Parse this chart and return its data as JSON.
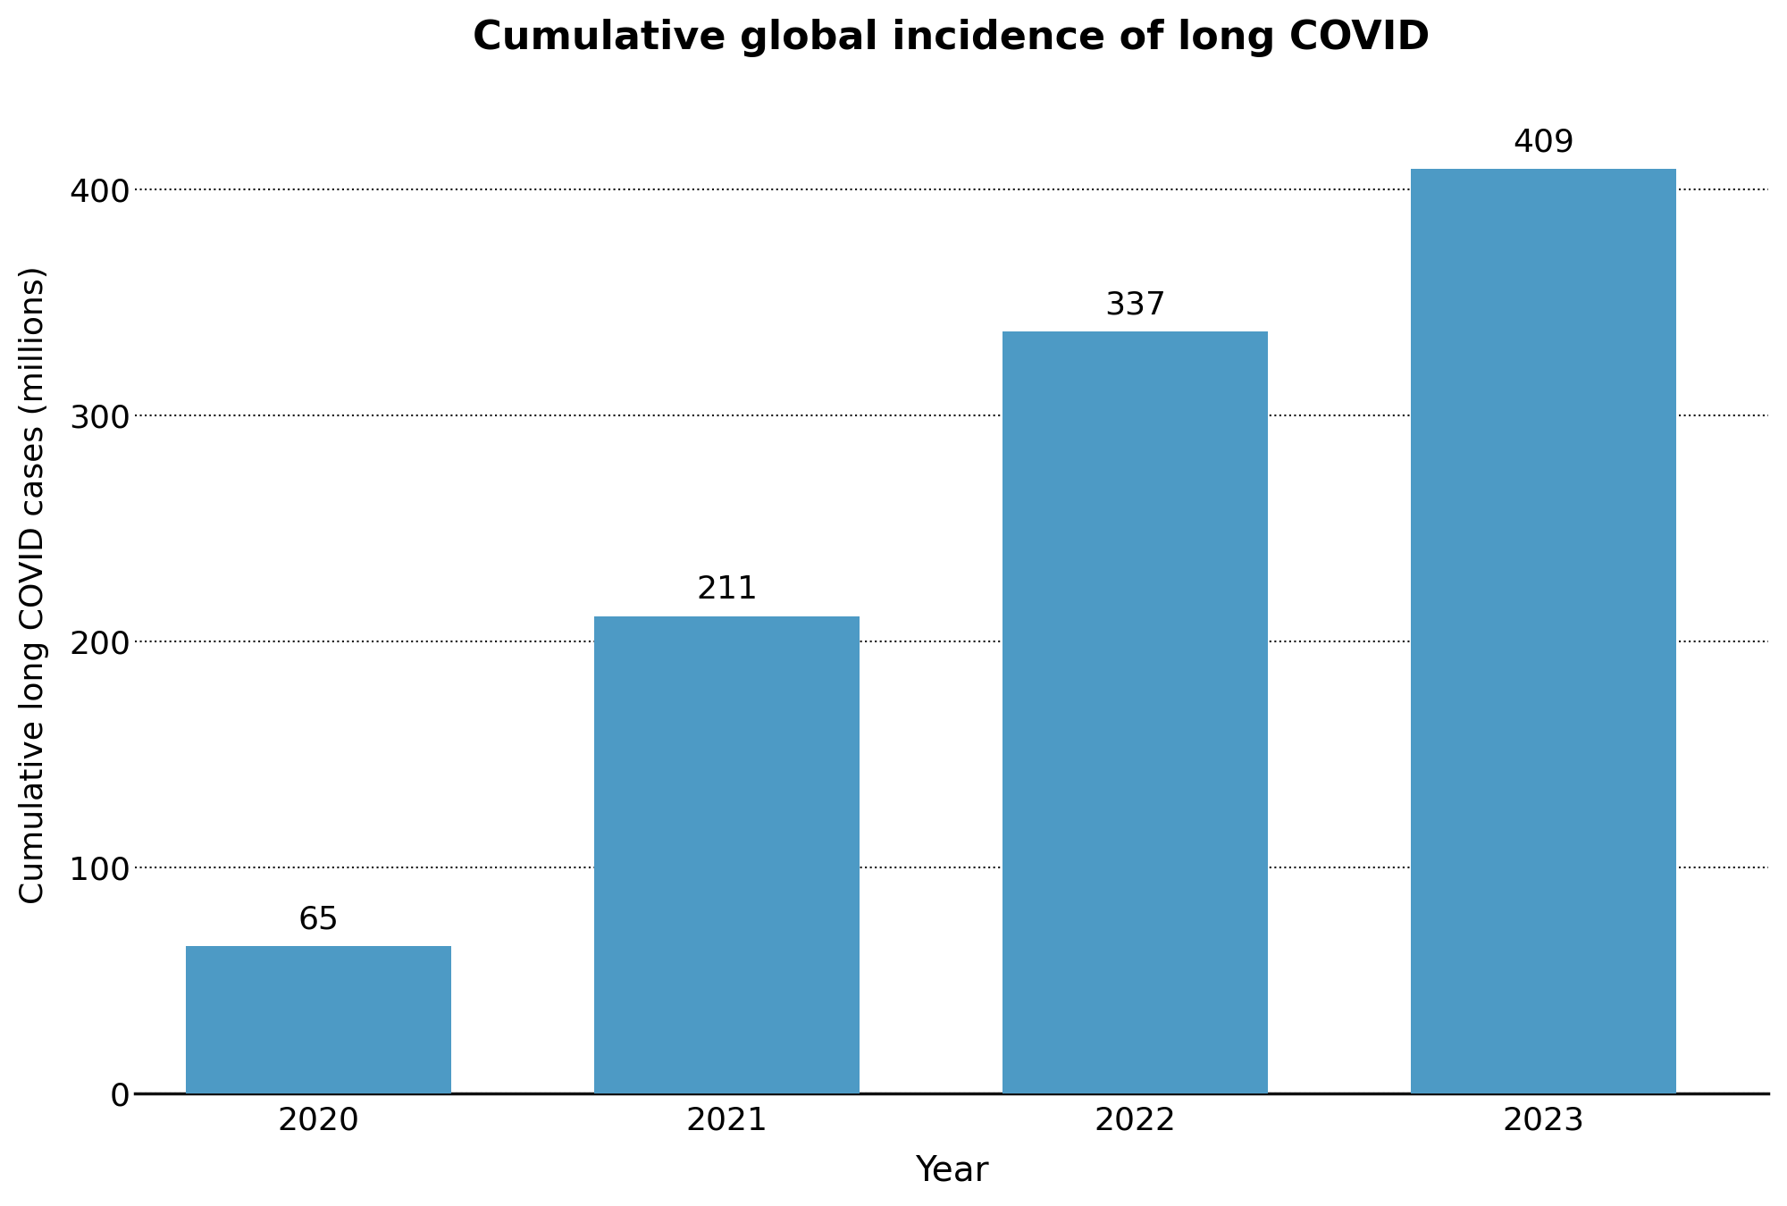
{
  "categories": [
    "2020",
    "2021",
    "2022",
    "2023"
  ],
  "values": [
    65,
    211,
    337,
    409
  ],
  "bar_color": "#4D9AC5",
  "title": "Cumulative global incidence of long COVID",
  "title_fontsize": 32,
  "title_fontweight": "bold",
  "xlabel": "Year",
  "ylabel": "Cumulative long COVID cases (millions)",
  "xlabel_fontsize": 28,
  "ylabel_fontsize": 26,
  "tick_fontsize": 26,
  "label_fontsize": 26,
  "ylim": [
    0,
    450
  ],
  "yticks": [
    0,
    100,
    200,
    300,
    400
  ],
  "background_color": "#ffffff",
  "bar_width": 0.65,
  "grid_color": "#111111",
  "grid_linestyle": "dotted",
  "grid_linewidth": 1.5,
  "spine_bottom_color": "#111111",
  "spine_bottom_linewidth": 2.5,
  "xlim_left": -0.45,
  "xlim_right": 3.55
}
